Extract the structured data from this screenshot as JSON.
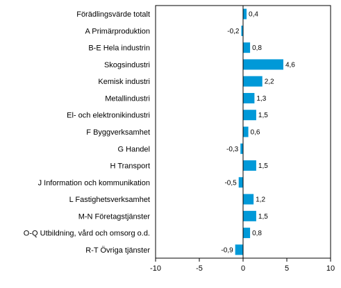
{
  "chart_data": {
    "type": "bar",
    "orientation": "horizontal",
    "title": "",
    "xlabel": "",
    "ylabel": "",
    "categories": [
      "Förädlingsvärde totalt",
      "A Primärproduktion",
      "B-E Hela industrin",
      "Skogsindustri",
      "Kemisk industri",
      "Metallindustri",
      "El- och elektronikindustri",
      "F Byggverksamhet",
      "G Handel",
      "H Transport",
      "J Information och kommunikation",
      "L Fastighetsverksamhet",
      "M-N Företagstjänster",
      "O-Q Utbildning, vård och omsorg o.d.",
      "R-T Övriga tjänster"
    ],
    "values": [
      0.4,
      -0.2,
      0.8,
      4.6,
      2.2,
      1.3,
      1.5,
      0.6,
      -0.3,
      1.5,
      -0.5,
      1.2,
      1.5,
      0.8,
      -0.9
    ],
    "value_labels": [
      "0,4",
      "-0,2",
      "0,8",
      "4,6",
      "2,2",
      "1,3",
      "1,5",
      "0,6",
      "-0,3",
      "1,5",
      "-0,5",
      "1,2",
      "1,5",
      "0,8",
      "-0,9"
    ],
    "xlim": [
      -10,
      10
    ],
    "xticks": [
      -10,
      -5,
      0,
      5,
      10
    ],
    "xtick_labels": [
      "-10",
      "-5",
      "0",
      "5",
      "10"
    ],
    "grid": false,
    "legend": "none",
    "bar_color": "#0099d8",
    "axis_color": "#000000"
  }
}
